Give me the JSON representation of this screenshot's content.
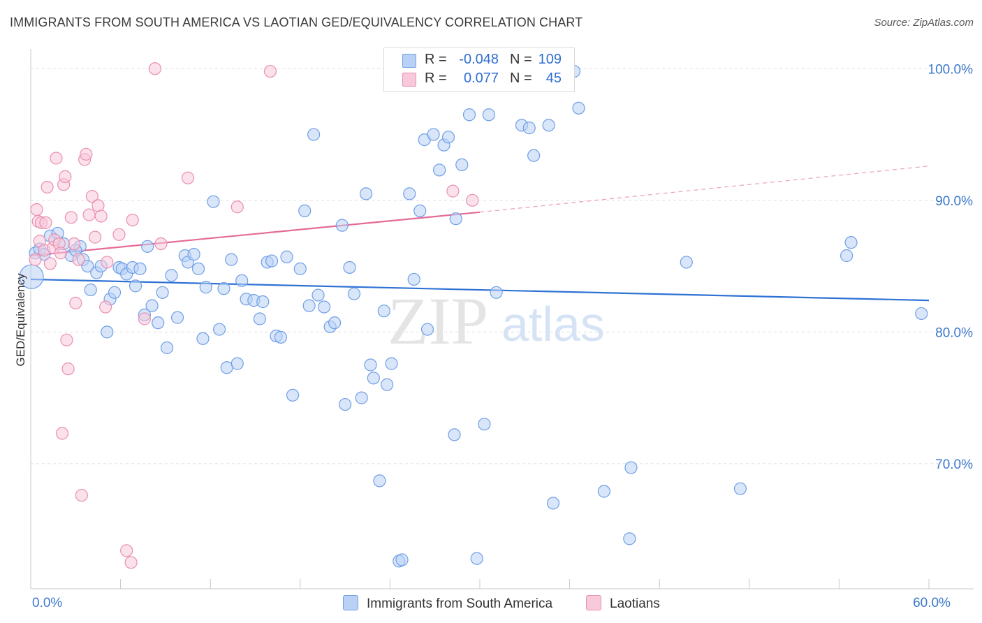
{
  "title": "IMMIGRANTS FROM SOUTH AMERICA VS LAOTIAN GED/EQUIVALENCY CORRELATION CHART",
  "source": "Source: ZipAtlas.com",
  "watermark": {
    "zip": "ZIP",
    "atlas": "atlas"
  },
  "legend": {
    "rows": [
      {
        "r_label": "R =",
        "r_value": "-0.048",
        "n_label": "N =",
        "n_value": "109",
        "color": "#6f9fe6",
        "fill": "#b9d1f5"
      },
      {
        "r_label": "R =",
        "r_value": "0.077",
        "n_label": "N =",
        "n_value": "45",
        "color": "#e98fb1",
        "fill": "#f7c9da"
      }
    ]
  },
  "bottom_legend": [
    {
      "label": "Immigrants from South America",
      "color": "#6f9fe6",
      "fill": "#b9d1f5"
    },
    {
      "label": "Laotians",
      "color": "#e98fb1",
      "fill": "#f7c9da"
    }
  ],
  "chart_data": {
    "type": "scatter",
    "title": "IMMIGRANTS FROM SOUTH AMERICA VS LAOTIAN GED/EQUIVALENCY CORRELATION CHART",
    "xlabel": "",
    "ylabel": "GED/Equivalency",
    "xlim": [
      0,
      60
    ],
    "ylim": [
      60.5,
      101.5
    ],
    "x_tick_labels": [
      {
        "value": 0,
        "label": "0.0%"
      },
      {
        "value": 60,
        "label": "60.0%"
      }
    ],
    "y_tick_labels": [
      {
        "value": 100,
        "label": "100.0%"
      },
      {
        "value": 90,
        "label": "90.0%"
      },
      {
        "value": 80,
        "label": "80.0%"
      },
      {
        "value": 70,
        "label": "70.0%"
      }
    ],
    "grid": "horizontal-dashed",
    "legend_position": "top-center",
    "series": [
      {
        "name": "Immigrants from South America",
        "color": "#6f9fe6",
        "fill": "#b9d1f5",
        "trend": {
          "x": [
            0,
            60
          ],
          "y": [
            84.0,
            82.4
          ],
          "style": "solid"
        },
        "points": [
          [
            0.05,
            84.2
          ],
          [
            0.3,
            86.0
          ],
          [
            0.6,
            86.3
          ],
          [
            0.9,
            85.9
          ],
          [
            1.3,
            87.3
          ],
          [
            1.8,
            87.5
          ],
          [
            2.2,
            86.7
          ],
          [
            2.7,
            85.8
          ],
          [
            3.3,
            86.5
          ],
          [
            3.0,
            86.2
          ],
          [
            3.5,
            85.5
          ],
          [
            3.8,
            85.0
          ],
          [
            4.0,
            83.2
          ],
          [
            4.4,
            84.5
          ],
          [
            4.7,
            85.0
          ],
          [
            5.1,
            80.0
          ],
          [
            5.3,
            82.5
          ],
          [
            5.6,
            83.0
          ],
          [
            5.9,
            84.9
          ],
          [
            6.1,
            84.8
          ],
          [
            6.4,
            84.4
          ],
          [
            6.8,
            84.9
          ],
          [
            7.0,
            83.5
          ],
          [
            7.3,
            84.8
          ],
          [
            7.6,
            81.3
          ],
          [
            7.8,
            86.5
          ],
          [
            8.1,
            82.0
          ],
          [
            8.5,
            80.7
          ],
          [
            8.8,
            83.0
          ],
          [
            9.1,
            78.8
          ],
          [
            9.4,
            84.3
          ],
          [
            9.8,
            81.1
          ],
          [
            10.3,
            85.8
          ],
          [
            10.5,
            85.3
          ],
          [
            10.9,
            85.9
          ],
          [
            11.2,
            84.8
          ],
          [
            11.5,
            79.5
          ],
          [
            11.7,
            83.4
          ],
          [
            12.2,
            89.9
          ],
          [
            12.6,
            80.2
          ],
          [
            12.9,
            83.3
          ],
          [
            13.1,
            77.3
          ],
          [
            13.4,
            85.5
          ],
          [
            13.8,
            77.6
          ],
          [
            14.1,
            83.9
          ],
          [
            14.4,
            82.5
          ],
          [
            14.9,
            82.4
          ],
          [
            15.3,
            81.0
          ],
          [
            15.5,
            82.3
          ],
          [
            15.8,
            85.3
          ],
          [
            16.1,
            85.4
          ],
          [
            16.4,
            79.7
          ],
          [
            16.7,
            79.6
          ],
          [
            17.1,
            85.7
          ],
          [
            17.5,
            75.2
          ],
          [
            18.0,
            84.8
          ],
          [
            18.3,
            89.2
          ],
          [
            18.6,
            82.0
          ],
          [
            18.9,
            95.0
          ],
          [
            19.2,
            82.8
          ],
          [
            19.6,
            81.9
          ],
          [
            20.0,
            80.4
          ],
          [
            20.3,
            80.7
          ],
          [
            20.8,
            88.1
          ],
          [
            21.0,
            74.5
          ],
          [
            21.3,
            84.9
          ],
          [
            21.6,
            82.9
          ],
          [
            22.1,
            75.0
          ],
          [
            22.4,
            90.5
          ],
          [
            22.7,
            77.5
          ],
          [
            22.9,
            76.5
          ],
          [
            23.3,
            68.7
          ],
          [
            23.6,
            81.6
          ],
          [
            23.8,
            76.0
          ],
          [
            24.1,
            77.6
          ],
          [
            24.6,
            62.6
          ],
          [
            24.8,
            62.7
          ],
          [
            25.3,
            90.5
          ],
          [
            25.6,
            84.0
          ],
          [
            26.0,
            89.2
          ],
          [
            26.3,
            94.6
          ],
          [
            26.5,
            80.2
          ],
          [
            26.9,
            95.0
          ],
          [
            27.3,
            92.3
          ],
          [
            27.6,
            94.2
          ],
          [
            27.9,
            94.8
          ],
          [
            28.3,
            72.2
          ],
          [
            28.4,
            88.6
          ],
          [
            28.8,
            92.7
          ],
          [
            29.3,
            96.5
          ],
          [
            29.8,
            62.8
          ],
          [
            30.3,
            73.0
          ],
          [
            30.6,
            96.5
          ],
          [
            31.1,
            83.0
          ],
          [
            32.8,
            95.7
          ],
          [
            33.3,
            95.5
          ],
          [
            33.6,
            93.4
          ],
          [
            34.6,
            95.7
          ],
          [
            34.9,
            67.0
          ],
          [
            36.3,
            99.8
          ],
          [
            36.6,
            97.0
          ],
          [
            38.3,
            67.9
          ],
          [
            40.0,
            64.3
          ],
          [
            40.1,
            69.7
          ],
          [
            43.8,
            85.3
          ],
          [
            47.4,
            68.1
          ],
          [
            54.5,
            85.8
          ],
          [
            54.8,
            86.8
          ],
          [
            59.5,
            81.4
          ]
        ]
      },
      {
        "name": "Laotians",
        "color": "#e98fb1",
        "fill": "#f7c9da",
        "trend": {
          "x": [
            0,
            30
          ],
          "y": [
            85.8,
            89.1
          ],
          "style": "solid",
          "extension": {
            "x": [
              30,
              60
            ],
            "y": [
              89.1,
              92.6
            ],
            "style": "dashed"
          }
        },
        "points": [
          [
            0.3,
            85.5
          ],
          [
            0.4,
            89.3
          ],
          [
            0.5,
            88.4
          ],
          [
            0.6,
            86.9
          ],
          [
            0.7,
            88.3
          ],
          [
            0.9,
            86.2
          ],
          [
            1.0,
            88.3
          ],
          [
            1.1,
            91.0
          ],
          [
            1.3,
            85.2
          ],
          [
            1.5,
            86.4
          ],
          [
            1.6,
            87.0
          ],
          [
            1.7,
            93.2
          ],
          [
            1.9,
            86.7
          ],
          [
            2.0,
            86.0
          ],
          [
            2.2,
            91.2
          ],
          [
            2.3,
            91.8
          ],
          [
            2.4,
            79.4
          ],
          [
            2.5,
            77.2
          ],
          [
            2.7,
            88.7
          ],
          [
            2.9,
            86.7
          ],
          [
            3.0,
            82.2
          ],
          [
            3.2,
            85.5
          ],
          [
            3.4,
            67.6
          ],
          [
            3.6,
            93.1
          ],
          [
            3.7,
            93.5
          ],
          [
            3.9,
            88.9
          ],
          [
            4.1,
            90.3
          ],
          [
            4.3,
            87.2
          ],
          [
            4.5,
            89.6
          ],
          [
            4.7,
            88.8
          ],
          [
            5.0,
            81.9
          ],
          [
            5.1,
            85.3
          ],
          [
            5.9,
            87.4
          ],
          [
            6.4,
            63.4
          ],
          [
            6.7,
            62.5
          ],
          [
            6.8,
            88.5
          ],
          [
            7.6,
            81.0
          ],
          [
            8.7,
            86.7
          ],
          [
            10.5,
            91.7
          ],
          [
            13.8,
            89.5
          ],
          [
            16.0,
            99.8
          ],
          [
            28.2,
            90.7
          ],
          [
            29.5,
            90.0
          ],
          [
            2.1,
            72.3
          ],
          [
            8.3,
            100.0
          ]
        ]
      }
    ]
  }
}
